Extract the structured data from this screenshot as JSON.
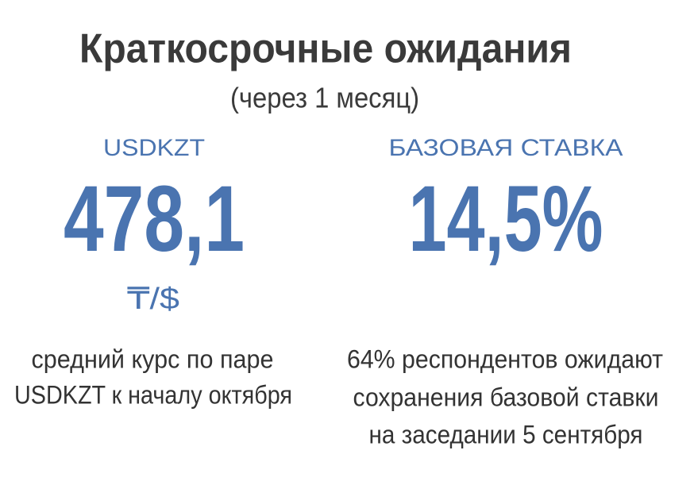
{
  "header": {
    "title": "Краткосрочные ожидания",
    "subtitle": "(через 1 месяц)"
  },
  "cards": [
    {
      "label": "USDKZT",
      "value": "478,1",
      "unit": "₸/$",
      "description": [
        "средний курс по паре",
        "USDKZT к началу октября"
      ]
    },
    {
      "label": "БАЗОВАЯ СТАВКА",
      "value": "14,5%",
      "description": [
        "64% респондентов ожидают",
        "сохранения базовой ставки",
        "на заседании 5 сентября"
      ]
    }
  ]
}
